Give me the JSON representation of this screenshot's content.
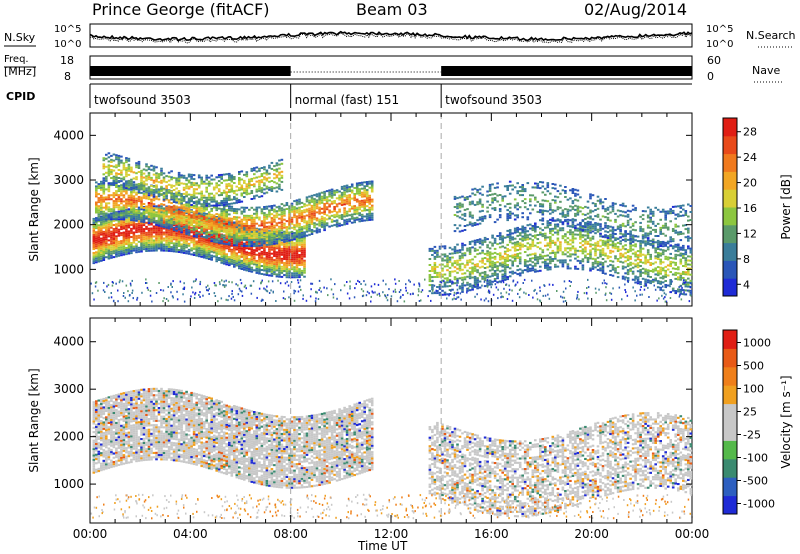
{
  "header": {
    "radar": "Prince George (fitACF)",
    "beam": "Beam 03",
    "date": "02/Aug/2014"
  },
  "strip_panels": {
    "nsky_label": "N.Sky",
    "nsearch_label": "N.Search",
    "freq_label_1": "Freq.",
    "freq_label_2": "[MHz]",
    "nave_label": "Nave",
    "cpid_label": "CPID",
    "left_ticks_power": [
      "10^5",
      "10^0"
    ],
    "right_ticks_power": [
      "10^5",
      "10^0"
    ],
    "freq_ticks": [
      "18",
      "8"
    ],
    "nave_ticks": [
      "60",
      "0"
    ]
  },
  "cpid_segments": [
    {
      "label": "twofsound 3503",
      "start_h": 0,
      "end_h": 8
    },
    {
      "label": "normal (fast) 151",
      "start_h": 8,
      "end_h": 14
    },
    {
      "label": "twofsound 3503",
      "start_h": 14,
      "end_h": 24
    }
  ],
  "x_axis": {
    "label": "Time UT",
    "tick_labels": [
      "00:00",
      "04:00",
      "08:00",
      "12:00",
      "16:00",
      "20:00",
      "00:00"
    ],
    "tick_hours": [
      0,
      4,
      8,
      12,
      16,
      20,
      24
    ],
    "range_h": [
      0,
      24
    ]
  },
  "chart_data": [
    {
      "type": "heatmap",
      "name": "power",
      "ylabel": "Slant Range [km]",
      "ylim": [
        180,
        4500
      ],
      "yticks": [
        1000,
        2000,
        3000,
        4000
      ],
      "colorbar_label": "Power [dB]",
      "colorbar_ticks": [
        "28",
        "24",
        "20",
        "16",
        "12",
        "8",
        "4"
      ],
      "colors": [
        "#1f2bd6",
        "#2a56b8",
        "#3a7d9a",
        "#5a9a6a",
        "#8cc63f",
        "#d8cf35",
        "#f2a623",
        "#f07a1e",
        "#e84a1a",
        "#e01e14"
      ],
      "bands": [
        {
          "t0": 0.1,
          "t1": 8.5,
          "r0": 1100,
          "r1": 2100,
          "intensity": 0.75
        },
        {
          "t0": 0.2,
          "t1": 11.2,
          "r0": 1800,
          "r1": 2700,
          "intensity": 0.55
        },
        {
          "t0": 0.5,
          "t1": 7.6,
          "r0": 2700,
          "r1": 3400,
          "intensity": 0.4
        },
        {
          "t0": 13.5,
          "t1": 24,
          "r0": 700,
          "r1": 1800,
          "intensity": 0.35
        },
        {
          "t0": 14.5,
          "t1": 24,
          "r0": 1800,
          "r1": 2700,
          "intensity": 0.18
        }
      ]
    },
    {
      "type": "heatmap",
      "name": "velocity",
      "ylabel": "Slant Range [km]",
      "ylim": [
        180,
        4500
      ],
      "yticks": [
        1000,
        2000,
        3000,
        4000
      ],
      "colorbar_label": "Velocity [m s⁻¹]",
      "colorbar_ticks": [
        "1000",
        "500",
        "100",
        "25",
        "-25",
        "-100",
        "-500",
        "-1000"
      ],
      "colors": [
        "#1f2bd6",
        "#2d5fc0",
        "#3a8a70",
        "#54b94a",
        "#c8c8c8",
        "#c8c8c8",
        "#f0a020",
        "#ef7f1a",
        "#e85a16",
        "#e01e14"
      ],
      "bands": [
        {
          "t0": 0.1,
          "t1": 11.2,
          "r0": 1200,
          "r1": 2700,
          "intensity": 0.7
        },
        {
          "t0": 13.5,
          "t1": 24,
          "r0": 600,
          "r1": 2200,
          "intensity": 0.45
        }
      ]
    }
  ]
}
